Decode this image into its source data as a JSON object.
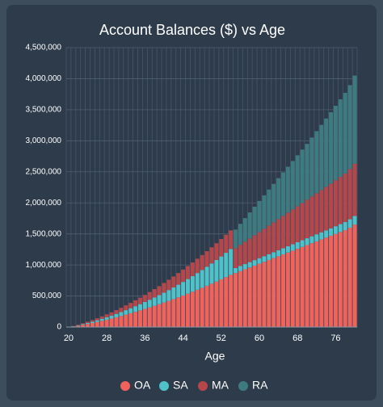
{
  "chart_data": {
    "type": "stacked-bar",
    "title": "Account Balances ($) vs Age",
    "x_label": "Age",
    "categories": [
      "20",
      null,
      null,
      null,
      null,
      null,
      null,
      null,
      "28",
      null,
      null,
      null,
      null,
      null,
      null,
      null,
      "36",
      null,
      null,
      null,
      null,
      null,
      null,
      null,
      "44",
      null,
      null,
      null,
      null,
      null,
      null,
      null,
      "52",
      null,
      null,
      null,
      null,
      null,
      null,
      null,
      "60",
      null,
      null,
      null,
      null,
      null,
      null,
      null,
      "68",
      null,
      null,
      null,
      null,
      null,
      null,
      null,
      "76",
      null,
      null,
      null,
      null
    ],
    "series": [
      {
        "name": "OA",
        "color": "#f0625a",
        "values": [
          0,
          10000,
          22000,
          35000,
          50000,
          65000,
          82000,
          100000,
          118000,
          137000,
          157000,
          178000,
          200000,
          222000,
          245000,
          268000,
          292000,
          317000,
          342000,
          368000,
          395000,
          422000,
          450000,
          479000,
          508000,
          538000,
          569000,
          600000,
          632000,
          665000,
          698000,
          732000,
          767000,
          803000,
          840000,
          870000,
          900000,
          930000,
          960000,
          990000,
          1020000,
          1050000,
          1080000,
          1110000,
          1140000,
          1170000,
          1200000,
          1230000,
          1260000,
          1290000,
          1320000,
          1350000,
          1380000,
          1410000,
          1440000,
          1470000,
          1500000,
          1530000,
          1560000,
          1600000,
          1650000
        ]
      },
      {
        "name": "SA",
        "color": "#4fc1c9",
        "values": [
          0,
          3000,
          7000,
          11000,
          16000,
          21000,
          27000,
          33000,
          40000,
          47000,
          55000,
          63000,
          72000,
          81000,
          91000,
          101000,
          112000,
          123000,
          135000,
          147000,
          160000,
          174000,
          188000,
          203000,
          219000,
          235000,
          252000,
          270000,
          288000,
          307000,
          327000,
          348000,
          370000,
          393000,
          417000,
          80000,
          82000,
          84000,
          86000,
          88000,
          90000,
          92000,
          94000,
          96000,
          98000,
          100000,
          102000,
          104000,
          106000,
          108000,
          110000,
          112000,
          114000,
          116000,
          118000,
          120000,
          124000,
          128000,
          132000,
          136000,
          140000
        ]
      },
      {
        "name": "MA",
        "color": "#b5474b",
        "values": [
          0,
          4000,
          9000,
          14000,
          20000,
          26000,
          32000,
          39000,
          46000,
          53000,
          61000,
          69000,
          77000,
          86000,
          95000,
          104000,
          114000,
          124000,
          134000,
          144000,
          155000,
          166000,
          177000,
          188000,
          199000,
          210000,
          220000,
          230000,
          240000,
          250000,
          260000,
          270000,
          280000,
          290000,
          300000,
          320000,
          340000,
          360000,
          380000,
          400000,
          420000,
          440000,
          460000,
          480000,
          500000,
          520000,
          540000,
          560000,
          580000,
          600000,
          620000,
          640000,
          660000,
          680000,
          700000,
          720000,
          740000,
          760000,
          780000,
          810000,
          840000
        ]
      },
      {
        "name": "RA",
        "color": "#3e7b80",
        "values": [
          0,
          0,
          0,
          0,
          0,
          0,
          0,
          0,
          0,
          0,
          0,
          0,
          0,
          0,
          0,
          0,
          0,
          0,
          0,
          0,
          0,
          0,
          0,
          0,
          0,
          0,
          0,
          0,
          0,
          0,
          0,
          0,
          0,
          0,
          0,
          300000,
          340000,
          380000,
          420000,
          460000,
          500000,
          540000,
          580000,
          620000,
          660000,
          700000,
          740000,
          780000,
          820000,
          860000,
          900000,
          950000,
          1000000,
          1050000,
          1100000,
          1150000,
          1200000,
          1250000,
          1300000,
          1350000,
          1420000
        ]
      }
    ],
    "ylim": [
      0,
      4500000
    ],
    "yticks": [
      0,
      {
        "value": 500000,
        "label": "500,000"
      },
      {
        "value": 1000000,
        "label": "1,000,000"
      },
      {
        "value": 1500000,
        "label": "1,500,000"
      },
      {
        "value": 2000000,
        "label": "2,000,000"
      },
      {
        "value": 2500000,
        "label": "2,500,000"
      },
      {
        "value": 3000000,
        "label": "3,000,000"
      },
      {
        "value": 3500000,
        "label": "3,500,000"
      },
      {
        "value": 4000000,
        "label": "4,000,000"
      },
      {
        "value": 4500000,
        "label": "4,500,000"
      }
    ],
    "grid": true
  }
}
